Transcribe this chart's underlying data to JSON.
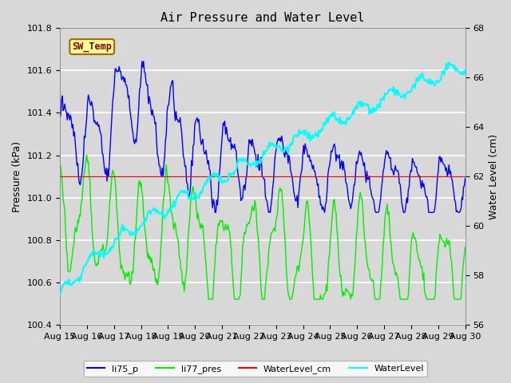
{
  "title": "Air Pressure and Water Level",
  "ylabel_left": "Pressure (kPa)",
  "ylabel_right": "Water Level (cm)",
  "ylim_left": [
    100.4,
    101.8
  ],
  "ylim_right": [
    56,
    68
  ],
  "yticks_left": [
    100.4,
    100.6,
    100.8,
    101.0,
    101.2,
    101.4,
    101.6,
    101.8
  ],
  "yticks_right": [
    56,
    58,
    60,
    62,
    64,
    66,
    68
  ],
  "bg_color": "#d8d8d8",
  "plot_bg_color": "#d8d8d8",
  "grid_color": "#ffffff",
  "sw_temp_box_color": "#ffff99",
  "sw_temp_text_color": "#880000",
  "sw_temp_border_color": "#aa6600",
  "xtick_labels": [
    "Aug 15",
    "Aug 16",
    "Aug 17",
    "Aug 18",
    "Aug 19",
    "Aug 20",
    "Aug 21",
    "Aug 22",
    "Aug 23",
    "Aug 24",
    "Aug 25",
    "Aug 26",
    "Aug 27",
    "Aug 28",
    "Aug 29",
    "Aug 30"
  ]
}
